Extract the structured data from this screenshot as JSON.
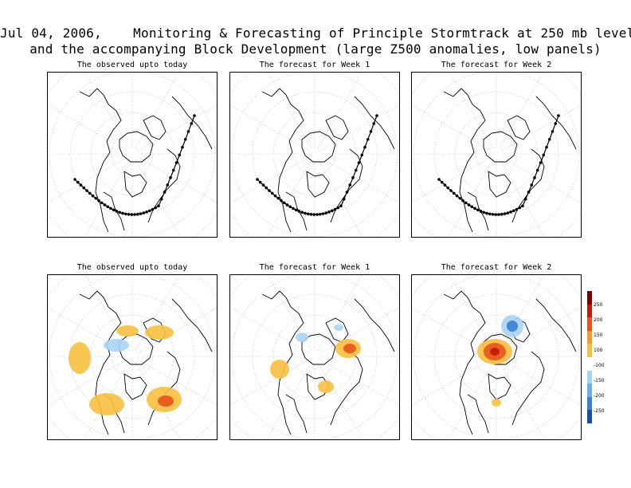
{
  "header": {
    "title_line1": "Jul 04, 2006,    Monitoring & Forecasting of Principle Stormtrack at 250 mb level",
    "title_line2": "and the accompanying Block Development (large Z500 anomalies, low panels)"
  },
  "panels": {
    "top": [
      {
        "title": "The observed upto today"
      },
      {
        "title": "The forecast for Week 1"
      },
      {
        "title": "The forecast for Week 2"
      }
    ],
    "bottom": [
      {
        "title": "The observed upto today"
      },
      {
        "title": "The forecast for Week 1"
      },
      {
        "title": "The forecast for Week 2"
      }
    ]
  },
  "colorbar": {
    "labels": [
      "250",
      "200",
      "150",
      "100",
      "-100",
      "-150",
      "-200",
      "-250"
    ],
    "colors": [
      "#7a0000",
      "#c21a08",
      "#e8521a",
      "#f49a2a",
      "#f8c040",
      "#ffffff",
      "#a8d4f4",
      "#6aaeec",
      "#3a80d4",
      "#1450a8"
    ]
  }
}
